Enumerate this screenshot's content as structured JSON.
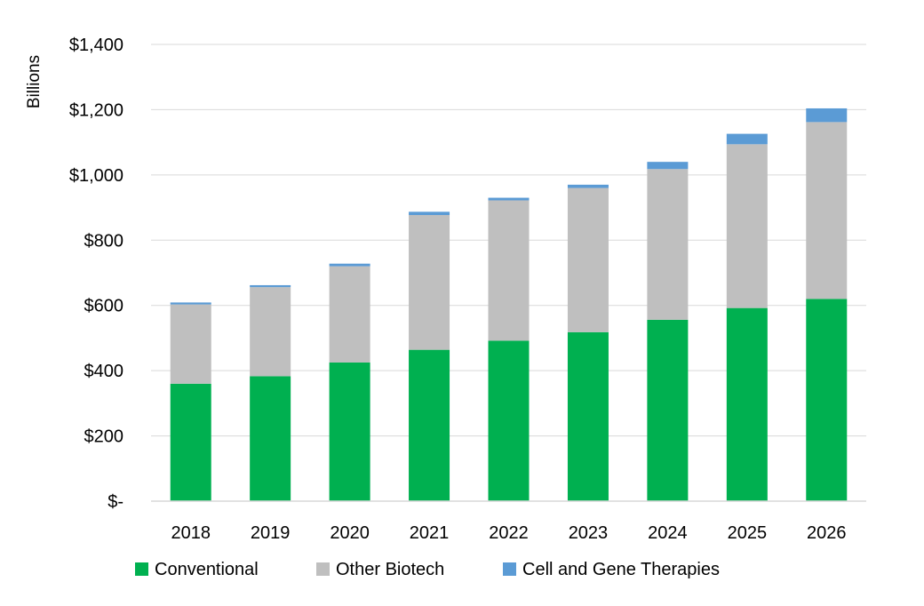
{
  "chart_data": {
    "type": "bar",
    "stacked": true,
    "categories": [
      "2018",
      "2019",
      "2020",
      "2021",
      "2022",
      "2023",
      "2024",
      "2025",
      "2026"
    ],
    "series": [
      {
        "name": "Conventional",
        "color": "#00b050",
        "values": [
          360,
          383,
          425,
          464,
          492,
          518,
          556,
          592,
          620
        ]
      },
      {
        "name": "Other Biotech",
        "color": "#bfbfbf",
        "values": [
          243,
          273,
          295,
          413,
          430,
          442,
          462,
          502,
          542
        ]
      },
      {
        "name": "Cell and Gene Therapies",
        "color": "#5b9bd5",
        "values": [
          6,
          6,
          8,
          10,
          8,
          10,
          22,
          32,
          42
        ]
      }
    ],
    "ylabel": "Billions",
    "ylim": [
      0,
      1400
    ],
    "yticks": [
      0,
      200,
      400,
      600,
      800,
      1000,
      1200,
      1400
    ],
    "ytick_labels": [
      "$-",
      "$200",
      "$400",
      "$600",
      "$800",
      "$1,000",
      "$1,200",
      "$1,400"
    ],
    "grid": true,
    "legend_position": "bottom"
  }
}
